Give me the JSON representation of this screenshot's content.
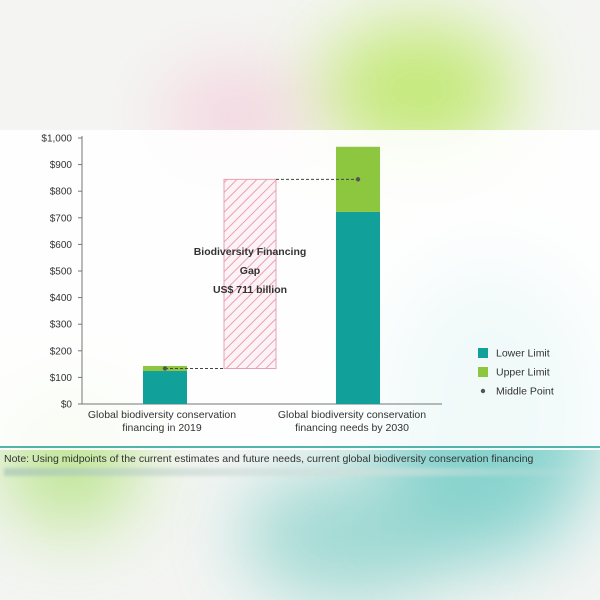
{
  "chart_data": {
    "type": "bar",
    "categories": [
      "Global biodiversity conservation financing in 2019",
      "Global biodiversity conservation financing needs by 2030"
    ],
    "category_label_lines": [
      [
        "Global biodiversity conservation",
        "financing in 2019"
      ],
      [
        "Global biodiversity conservation",
        "financing needs by 2030"
      ]
    ],
    "series": [
      {
        "name": "Lower Limit",
        "values": [
          124,
          722
        ],
        "color": "#12a09a"
      },
      {
        "name": "Upper Limit",
        "values": [
          143,
          967
        ],
        "color": "#8dc63f"
      },
      {
        "name": "Middle Point",
        "values": [
          133.5,
          844.5
        ],
        "color": "#555555"
      }
    ],
    "gap_annotation": {
      "lines": [
        "Biodiversity Financing",
        "Gap",
        "US$ 711 billion"
      ],
      "from": 133.5,
      "to": 844.5,
      "stroke_color": "#e8a0b4"
    },
    "ylim": [
      0,
      1000
    ],
    "yticks": [
      "$0",
      "$100",
      "$200",
      "$300",
      "$400",
      "$500",
      "$600",
      "$700",
      "$800",
      "$900",
      "$1,000"
    ],
    "ytick_values": [
      0,
      100,
      200,
      300,
      400,
      500,
      600,
      700,
      800,
      900,
      1000
    ],
    "legend_position": "right",
    "grid": false
  },
  "note": "Note: Using midpoints of the current estimates and future needs, current global biodiversity conservation financing"
}
